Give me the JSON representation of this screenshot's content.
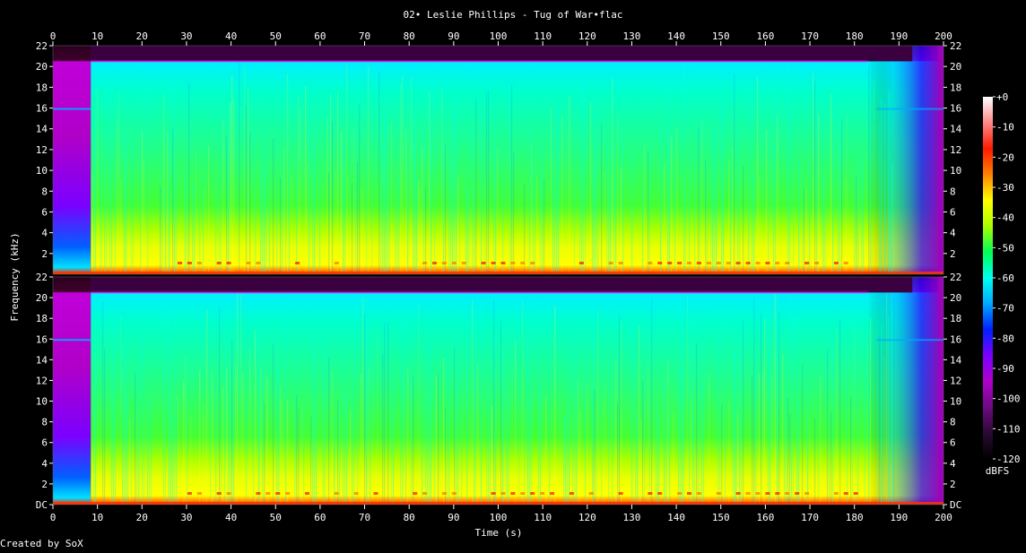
{
  "chart_data": {
    "type": "heatmap",
    "title": "02• Leslie Phillips - Tug of War•flac",
    "xlabel": "Time (s)",
    "ylabel": "Frequency (kHz)",
    "footer": "Created by SoX",
    "colorbar_unit": "dBFS",
    "xlim": [
      0,
      200
    ],
    "ylim": [
      0,
      22
    ],
    "x_ticks": [
      "0",
      "10",
      "20",
      "30",
      "40",
      "50",
      "60",
      "70",
      "80",
      "90",
      "100",
      "110",
      "120",
      "130",
      "140",
      "150",
      "160",
      "170",
      "180",
      "190",
      "200"
    ],
    "y_ticks_top": [
      "2",
      "4",
      "6",
      "8",
      "10",
      "12",
      "14",
      "16",
      "18",
      "20",
      "22"
    ],
    "y_ticks_bottom": [
      "DC",
      "2",
      "4",
      "6",
      "8",
      "10",
      "12",
      "14",
      "16",
      "18",
      "20",
      "22"
    ],
    "colorbar_ticks": [
      "+0",
      "-10",
      "-20",
      "-30",
      "-40",
      "-50",
      "-60",
      "-70",
      "-80",
      "-90",
      "-100",
      "-110",
      "-120"
    ],
    "colorbar_range": [
      -120,
      0
    ],
    "channels": 2,
    "music_start_s": 8.5,
    "music_end_s": 183,
    "fade_end_s": 199,
    "bandwidth_khz": 20.5,
    "colors": {
      "background": "#000000",
      "text": "#ffffff",
      "colormap": [
        "#000000",
        "#2a0a33",
        "#6d0a82",
        "#b000c8",
        "#7a00ff",
        "#0020ff",
        "#00a8ff",
        "#00ffee",
        "#00ff55",
        "#aaff00",
        "#ffff00",
        "#ff8000",
        "#ff1a00",
        "#ff8888",
        "#ffffff"
      ]
    }
  }
}
